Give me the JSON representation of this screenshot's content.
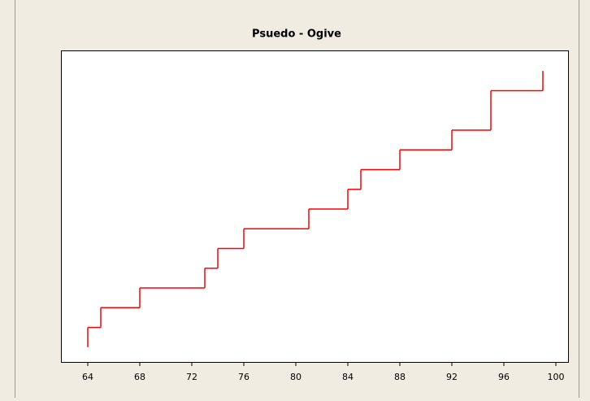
{
  "chart_data": {
    "type": "step",
    "title": "Psuedo - Ogive",
    "x": [
      64,
      65,
      68,
      73,
      74,
      76,
      81,
      84,
      85,
      88,
      92,
      95,
      99
    ],
    "values": [
      1,
      2,
      3,
      4,
      5,
      6,
      7,
      8,
      9,
      10,
      11,
      13,
      14
    ],
    "color": "#ff0000",
    "xlim": [
      62,
      101
    ],
    "xticks": [
      64,
      68,
      72,
      76,
      80,
      84,
      88,
      92,
      96,
      100
    ],
    "ylim": [
      -0.75,
      15
    ]
  }
}
